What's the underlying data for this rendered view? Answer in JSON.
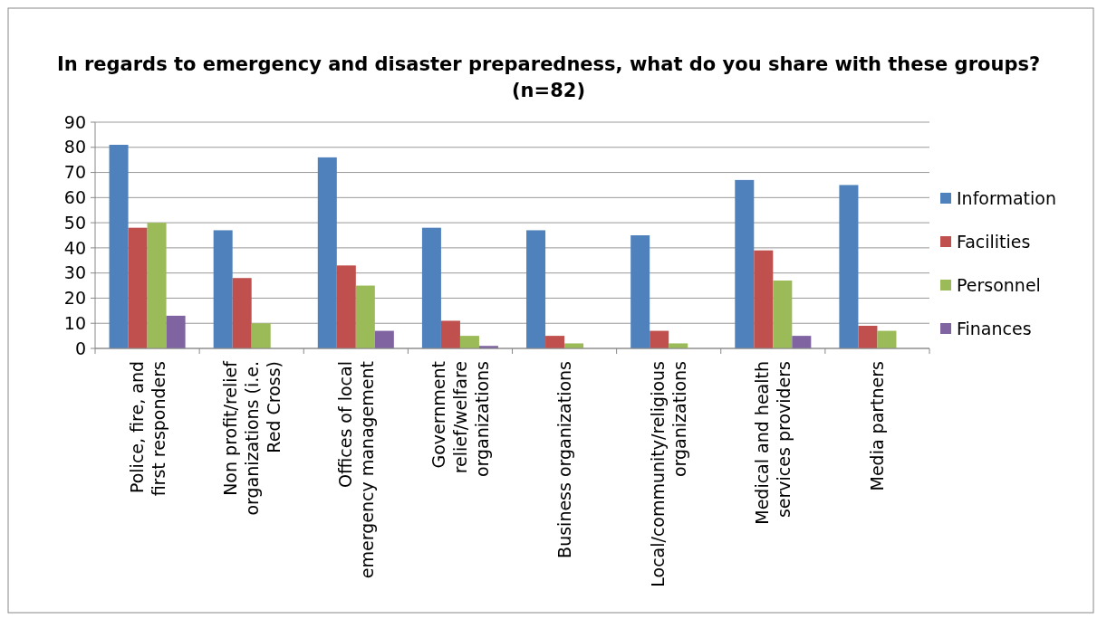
{
  "chart_data": {
    "type": "bar",
    "title": "In regards to emergency and disaster preparedness, what do you share with these groups? (n=82)",
    "categories": [
      "Police, fire, and first responders",
      "Non profit/relief organizations (i.e. Red Cross)",
      "Offices of local emergency management",
      "Government relief/welfare organizations",
      "Business organizations",
      "Local/community/religious organizations",
      "Medical and health services providers",
      "Media partners"
    ],
    "series": [
      {
        "name": "Information",
        "color": "#4f81bd",
        "values": [
          81,
          47,
          76,
          48,
          47,
          45,
          67,
          65
        ]
      },
      {
        "name": "Facilities",
        "color": "#c0504d",
        "values": [
          48,
          28,
          33,
          11,
          5,
          7,
          39,
          9
        ]
      },
      {
        "name": "Personnel",
        "color": "#9bbb59",
        "values": [
          50,
          10,
          25,
          5,
          2,
          2,
          27,
          7
        ]
      },
      {
        "name": "Finances",
        "color": "#8064a2",
        "values": [
          13,
          0,
          7,
          1,
          0,
          0,
          5,
          0
        ]
      }
    ],
    "ylim": [
      0,
      90
    ],
    "yticks": [
      0,
      10,
      20,
      30,
      40,
      50,
      60,
      70,
      80,
      90
    ],
    "grid": "y",
    "legend": "right"
  }
}
